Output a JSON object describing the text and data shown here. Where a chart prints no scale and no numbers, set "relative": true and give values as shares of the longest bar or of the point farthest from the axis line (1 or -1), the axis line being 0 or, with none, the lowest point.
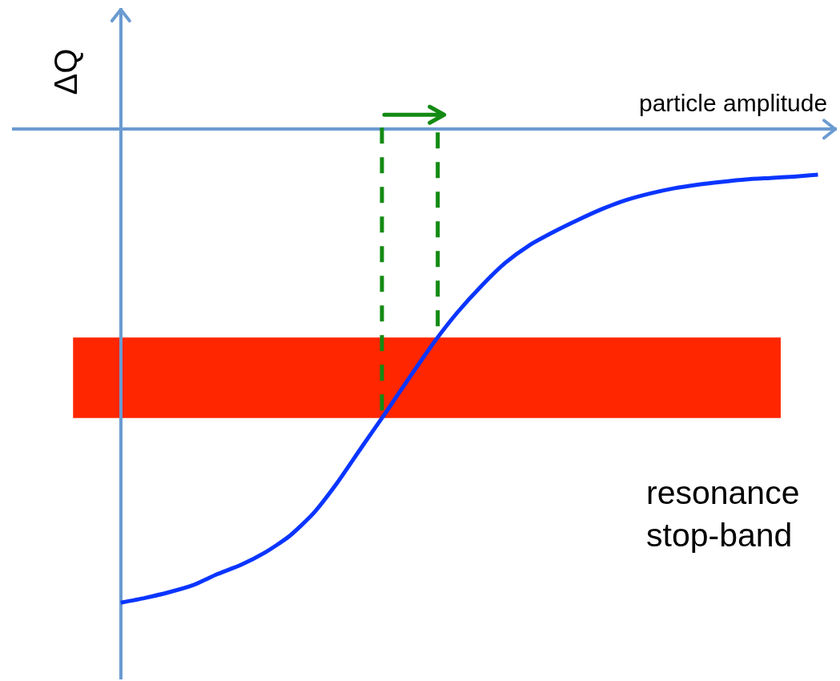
{
  "chart_data": {
    "type": "line",
    "relative": true,
    "xlabel": "particle amplitude",
    "ylabel": "ΔQ",
    "categories": [
      null,
      null,
      null,
      null,
      null,
      null,
      null,
      null,
      null,
      null,
      null,
      null,
      null,
      null,
      null,
      null,
      null,
      null,
      null,
      null,
      null,
      null,
      null,
      null,
      null,
      null,
      null,
      null,
      null,
      null
    ],
    "series": [
      {
        "color": "#0a35ff",
        "values": [
          -1,
          -0.99,
          -0.978,
          -0.963,
          -0.94,
          -0.92,
          -0.894,
          -0.86,
          -0.812,
          -0.747,
          -0.673,
          -0.6,
          -0.525,
          -0.452,
          -0.387,
          -0.331,
          -0.282,
          -0.245,
          -0.217,
          -0.192,
          -0.169,
          -0.15,
          -0.136,
          -0.125,
          -0.117,
          -0.111,
          -0.106,
          -0.103,
          -0.1,
          -0.096
        ]
      }
    ],
    "bands": [
      {
        "axis": "y",
        "from": -0.61,
        "to": -0.44,
        "label": "resonance\nstop-band",
        "color": "#ff2600"
      }
    ],
    "marker": "none",
    "line_style": "solid"
  }
}
